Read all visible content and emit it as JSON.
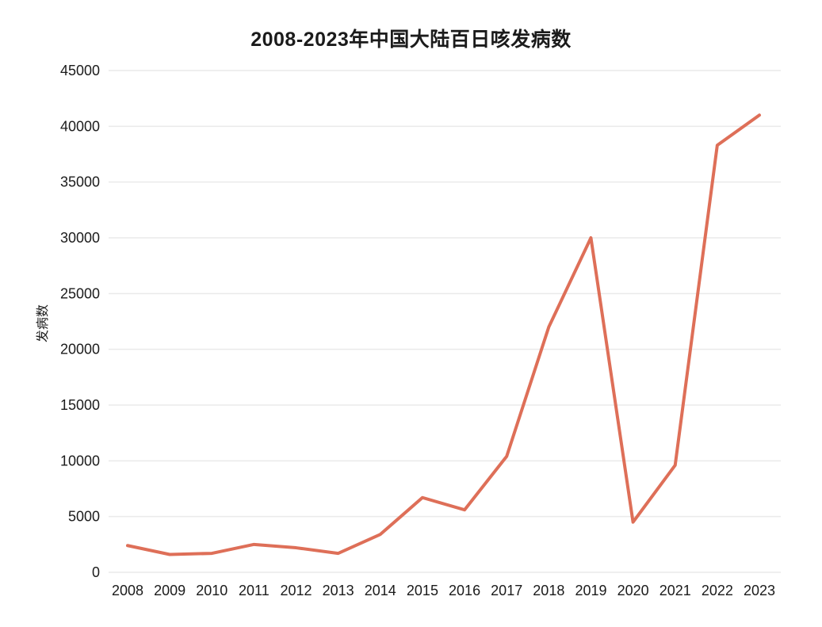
{
  "chart_data": {
    "type": "line",
    "title": "2008-2023年中国大陆百日咳发病数",
    "xlabel": "",
    "ylabel": "发病数",
    "categories": [
      "2008",
      "2009",
      "2010",
      "2011",
      "2012",
      "2013",
      "2014",
      "2015",
      "2016",
      "2017",
      "2018",
      "2019",
      "2020",
      "2021",
      "2022",
      "2023"
    ],
    "series": [
      {
        "name": "发病数",
        "values": [
          2400,
          1600,
          1700,
          2500,
          2200,
          1700,
          3400,
          6700,
          5600,
          10400,
          22000,
          30000,
          4500,
          9600,
          38300,
          41000
        ],
        "color": "#DE6F58"
      }
    ],
    "ylim": [
      0,
      45000
    ],
    "yticks": [
      0,
      5000,
      10000,
      15000,
      20000,
      25000,
      30000,
      35000,
      40000,
      45000
    ],
    "grid": "horizontal",
    "legend_position": "none",
    "marker": "none",
    "background_color": "#FFFFFF",
    "gridline_color": "#EAEAEA",
    "text_color": "#1B1B1B"
  }
}
